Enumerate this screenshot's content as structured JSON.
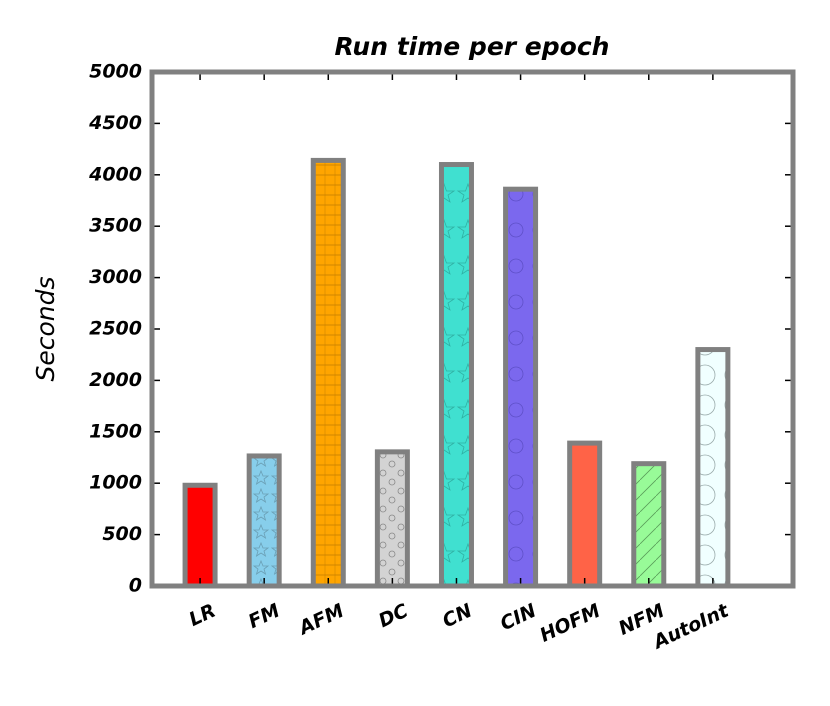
{
  "chart_data": {
    "type": "bar",
    "title": "Run time per epoch",
    "y_label": "Seconds",
    "categories": [
      "LR",
      "FM",
      "AFM",
      "DC",
      "CN",
      "CIN",
      "HOFM",
      "NFM",
      "AutoInt"
    ],
    "values": [
      980,
      1265,
      4140,
      1305,
      4100,
      3860,
      1390,
      1190,
      2300
    ],
    "colors": [
      "#ff0000",
      "#87ceeb",
      "#ffa500",
      "#d3d3d3",
      "#40e0d0",
      "#7b68ee",
      "#ff6347",
      "#98fb98",
      "#f0ffff"
    ],
    "edge_color": "#808080",
    "ylim": [
      0,
      5000
    ],
    "yticks": [
      0,
      500,
      1000,
      1500,
      2000,
      2500,
      3000,
      3500,
      4000,
      4500,
      5000
    ]
  }
}
